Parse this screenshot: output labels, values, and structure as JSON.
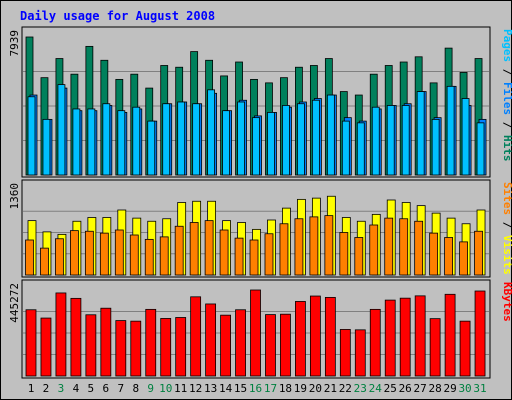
{
  "title": "Daily usage for August 2008",
  "colors": {
    "page_bg": "#c0c0c0",
    "panel_bg": "#c0c0c0",
    "grid": "#808080",
    "title": "#0000ff",
    "hits": "#00805c",
    "files": "#0080ff",
    "pages": "#00c0ff",
    "visits": "#ffff00",
    "sites": "#ff8000",
    "kbytes": "#ff0000",
    "weekday_label": "#000000",
    "weekend_label": "#008040"
  },
  "chart_data": [
    {
      "type": "bar",
      "panel": "top",
      "ymax_label": "7939",
      "side_label_parts": [
        {
          "text": "Pages",
          "color": "#00c0ff"
        },
        {
          "text": " / ",
          "color": "#000000"
        },
        {
          "text": "Files",
          "color": "#0080ff"
        },
        {
          "text": " / ",
          "color": "#000000"
        },
        {
          "text": "Hits",
          "color": "#00805c"
        }
      ],
      "ymax": 7939,
      "categories": [
        "1",
        "2",
        "3",
        "4",
        "5",
        "6",
        "7",
        "8",
        "9",
        "10",
        "11",
        "12",
        "13",
        "14",
        "15",
        "16",
        "17",
        "18",
        "19",
        "20",
        "21",
        "22",
        "23",
        "24",
        "25",
        "26",
        "27",
        "28",
        "29",
        "30",
        "31"
      ],
      "series": [
        {
          "name": "Hits",
          "color": "#00805c",
          "values": [
            7939,
            5600,
            6700,
            5800,
            7400,
            6600,
            5500,
            5800,
            5000,
            6300,
            6200,
            7100,
            6600,
            5700,
            6500,
            5500,
            5300,
            5600,
            6200,
            6300,
            6700,
            4800,
            4600,
            5800,
            6300,
            6500,
            6800,
            5300,
            7300,
            5900,
            6700
          ]
        },
        {
          "name": "Files",
          "color": "#0080ff",
          "values": [
            4600,
            3200,
            5000,
            3700,
            3700,
            4000,
            3600,
            3800,
            3100,
            4100,
            4200,
            4100,
            4700,
            3700,
            4300,
            3400,
            3600,
            3900,
            4200,
            4400,
            4600,
            3300,
            3100,
            3800,
            4000,
            4100,
            4800,
            3300,
            5100,
            4000,
            3200
          ]
        },
        {
          "name": "Pages",
          "color": "#00c0ff",
          "values": [
            4500,
            3200,
            5200,
            3800,
            3800,
            4100,
            3700,
            3900,
            3100,
            4100,
            4200,
            4100,
            4900,
            3700,
            4200,
            3300,
            3600,
            4000,
            4100,
            4300,
            4600,
            3100,
            3000,
            3900,
            4000,
            4000,
            4800,
            3200,
            5100,
            4400,
            3000
          ]
        }
      ]
    },
    {
      "type": "bar",
      "panel": "middle",
      "ymax_label": "1360",
      "side_label_parts": [
        {
          "text": "Sites",
          "color": "#ff8000"
        },
        {
          "text": " / ",
          "color": "#000000"
        },
        {
          "text": "Visits",
          "color": "#ffff00"
        }
      ],
      "ymax": 1360,
      "categories": [
        "1",
        "2",
        "3",
        "4",
        "5",
        "6",
        "7",
        "8",
        "9",
        "10",
        "11",
        "12",
        "13",
        "14",
        "15",
        "16",
        "17",
        "18",
        "19",
        "20",
        "21",
        "22",
        "23",
        "24",
        "25",
        "26",
        "27",
        "28",
        "29",
        "30",
        "31"
      ],
      "series": [
        {
          "name": "Visits",
          "color": "#ffff00",
          "values": [
            870,
            690,
            650,
            860,
            920,
            920,
            1040,
            910,
            860,
            900,
            1160,
            1180,
            1180,
            870,
            840,
            730,
            880,
            1070,
            1210,
            1230,
            1260,
            920,
            860,
            970,
            1200,
            1160,
            1110,
            990,
            910,
            820,
            1040
          ]
        },
        {
          "name": "Sites",
          "color": "#ff8000",
          "values": [
            560,
            430,
            580,
            710,
            700,
            670,
            720,
            640,
            570,
            610,
            780,
            840,
            870,
            720,
            590,
            560,
            660,
            820,
            900,
            930,
            950,
            680,
            600,
            800,
            910,
            900,
            860,
            670,
            600,
            530,
            700
          ]
        }
      ]
    },
    {
      "type": "bar",
      "panel": "bottom",
      "ymax_label": "445272",
      "side_label_parts": [
        {
          "text": "KBytes",
          "color": "#ff0000"
        }
      ],
      "ymax": 445272,
      "categories": [
        "1",
        "2",
        "3",
        "4",
        "5",
        "6",
        "7",
        "8",
        "9",
        "10",
        "11",
        "12",
        "13",
        "14",
        "15",
        "16",
        "17",
        "18",
        "19",
        "20",
        "21",
        "22",
        "23",
        "24",
        "25",
        "26",
        "27",
        "28",
        "29",
        "30",
        "31"
      ],
      "series": [
        {
          "name": "KBytes",
          "color": "#ff0000",
          "values": [
            343000,
            300000,
            430000,
            402000,
            317000,
            351000,
            287000,
            284000,
            345000,
            298000,
            303000,
            410000,
            373000,
            315000,
            343000,
            445272,
            318000,
            320000,
            386000,
            414000,
            407000,
            241000,
            239000,
            345000,
            393000,
            403000,
            415000,
            297000,
            423000,
            284000,
            440000
          ]
        }
      ]
    }
  ],
  "x_label_colors": [
    "#000000",
    "#000000",
    "#008040",
    "#000000",
    "#000000",
    "#000000",
    "#000000",
    "#000000",
    "#008040",
    "#008040",
    "#000000",
    "#000000",
    "#000000",
    "#000000",
    "#000000",
    "#008040",
    "#008040",
    "#000000",
    "#000000",
    "#000000",
    "#000000",
    "#000000",
    "#008040",
    "#008040",
    "#000000",
    "#000000",
    "#000000",
    "#000000",
    "#000000",
    "#008040",
    "#008040"
  ]
}
